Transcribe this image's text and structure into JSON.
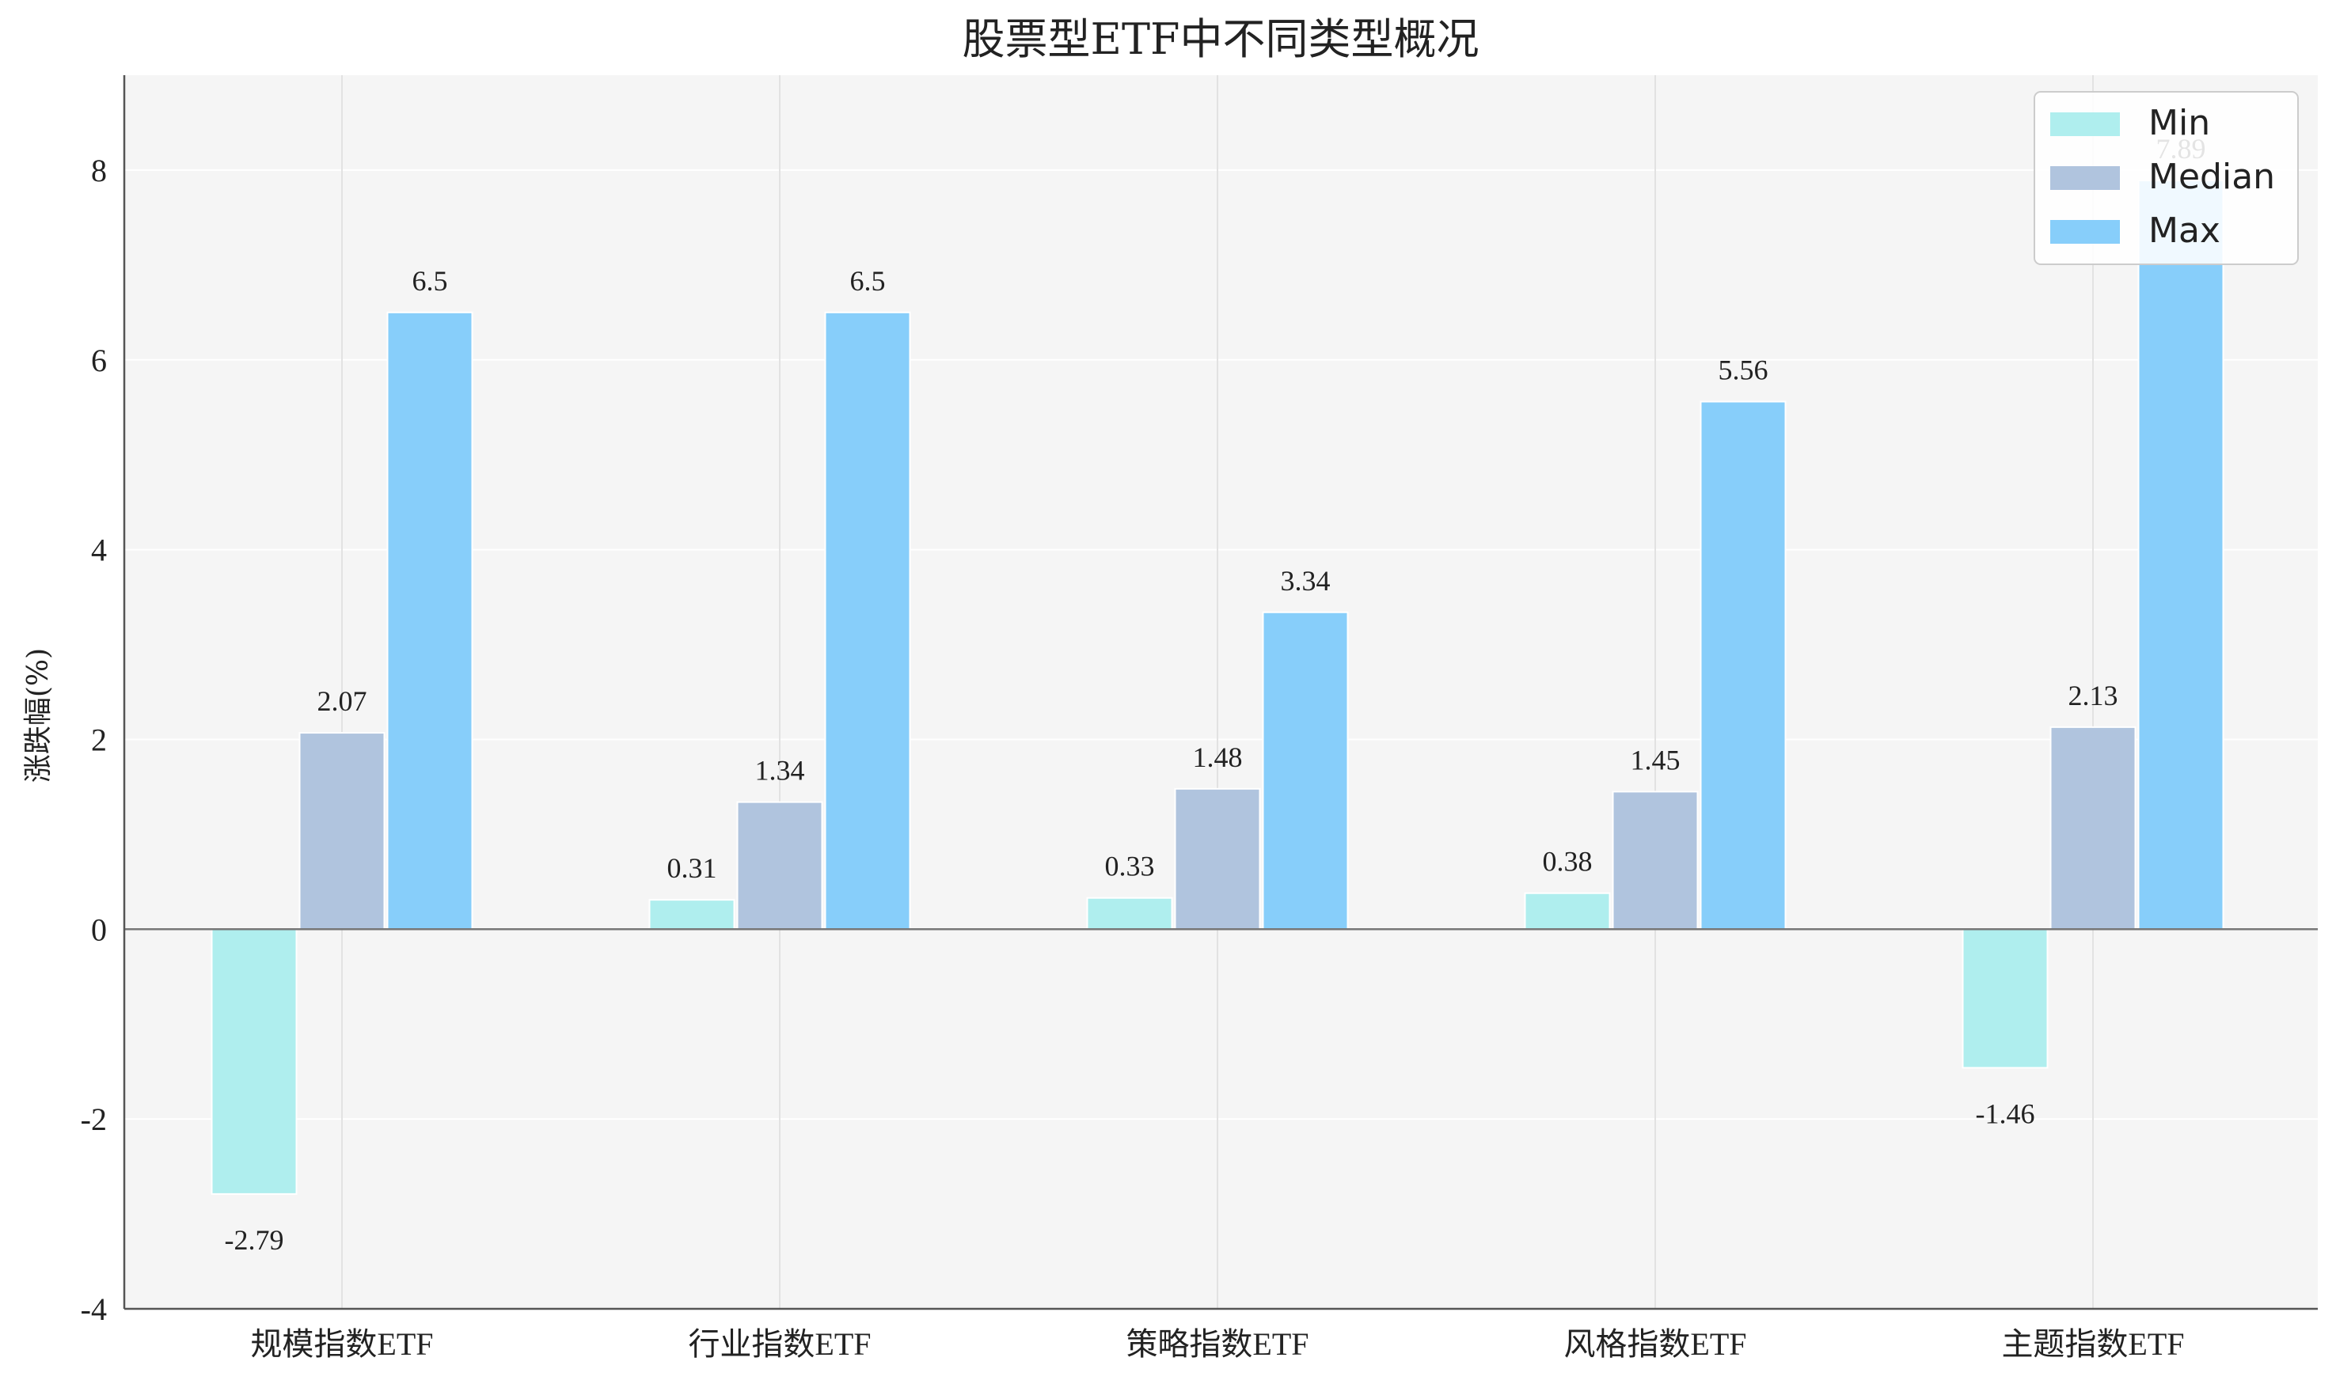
{
  "chart_data": {
    "type": "bar",
    "title": "股票型ETF中不同类型概况",
    "xlabel": "",
    "ylabel": "涨跌幅(%)",
    "ylim": [
      -4,
      9
    ],
    "yticks": [
      -4,
      -2,
      0,
      2,
      4,
      6,
      8
    ],
    "ytick_labels": [
      "-4",
      "-2",
      "0",
      "2",
      "4",
      "6",
      "8"
    ],
    "grid": true,
    "legend_position": "top-right",
    "categories": [
      "规模指数ETF",
      "行业指数ETF",
      "策略指数ETF",
      "风格指数ETF",
      "主题指数ETF"
    ],
    "series": [
      {
        "name": "Min",
        "color": "#afeeee",
        "values": [
          -2.79,
          0.31,
          0.33,
          0.38,
          -1.46
        ],
        "labels": [
          "-2.79",
          "0.31",
          "0.33",
          "0.38",
          "-1.46"
        ]
      },
      {
        "name": "Median",
        "color": "#b0c4de",
        "values": [
          2.07,
          1.34,
          1.48,
          1.45,
          2.13
        ],
        "labels": [
          "2.07",
          "1.34",
          "1.48",
          "1.45",
          "2.13"
        ]
      },
      {
        "name": "Max",
        "color": "#87cefa",
        "values": [
          6.5,
          6.5,
          3.34,
          5.56,
          7.89
        ],
        "labels": [
          "6.5",
          "6.5",
          "3.34",
          "5.56",
          "7.89"
        ]
      }
    ]
  }
}
